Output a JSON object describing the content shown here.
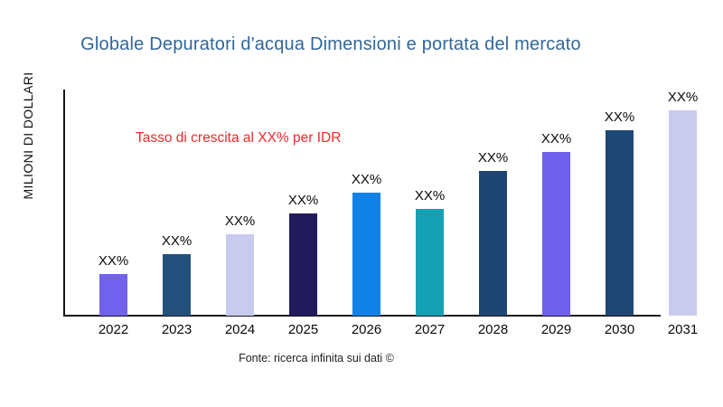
{
  "title": "Globale Depuratori d'acqua Dimensioni e portata del mercato",
  "title_color": "#31679B",
  "y_axis_label": "MILIONI DI DOLLARI",
  "annotation": {
    "text": "Tasso di crescita al XX% per IDR",
    "color": "#EE2B2B"
  },
  "footer": "Fonte: ricerca infinita sui dati ©",
  "chart_data": {
    "type": "bar",
    "title": "Globale Depuratori d'acqua Dimensioni e portata del mercato",
    "xlabel": "",
    "ylabel": "MILIONI DI DOLLARI",
    "categories": [
      "2022",
      "2023",
      "2024",
      "2025",
      "2026",
      "2027",
      "2028",
      "2029",
      "2030",
      "2031"
    ],
    "values": [
      46,
      68,
      90,
      113,
      136,
      118,
      160,
      181,
      205,
      227
    ],
    "values_note_unit": "relative bar heights (y-axis shows no numeric ticks)",
    "bar_labels": [
      "XX%",
      "XX%",
      "XX%",
      "XX%",
      "XX%",
      "XX%",
      "XX%",
      "XX%",
      "XX%",
      "XX%"
    ],
    "colors": [
      "#7161EC",
      "#24507C",
      "#C9CBEE",
      "#211B5C",
      "#1283E6",
      "#16A0B4",
      "#1F4572",
      "#6E60EC",
      "#1F4775",
      "#C9CBEE"
    ],
    "grid": false,
    "legend": false,
    "annotation": "Tasso di crescita al XX% per IDR",
    "source": "Fonte: ricerca infinita sui dati ©"
  }
}
